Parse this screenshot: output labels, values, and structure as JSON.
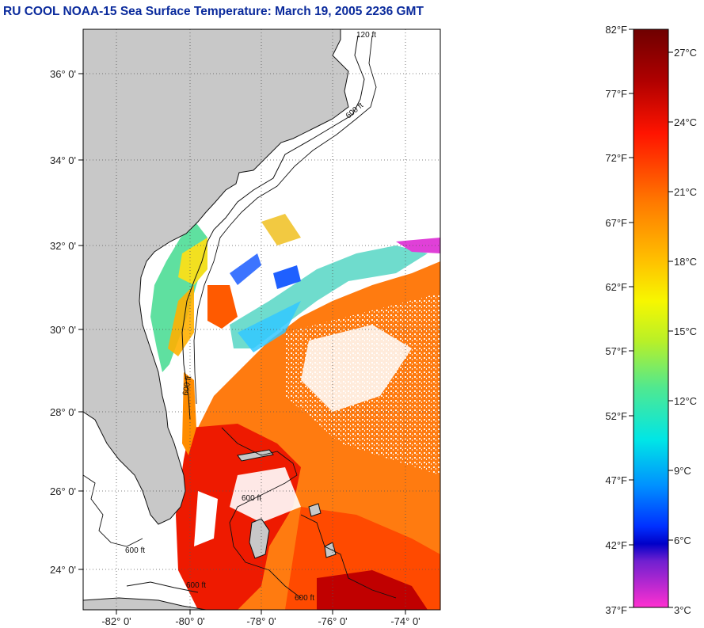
{
  "title": "RU COOL  NOAA-15  Sea Surface Temperature:  March 19, 2005 2236 GMT",
  "map": {
    "latitude_labels": [
      "36° 0'",
      "34° 0'",
      "32° 0'",
      "30° 0'",
      "28° 0'",
      "26° 0'",
      "24° 0'"
    ],
    "longitude_labels": [
      "-82° 0'",
      "-80° 0'",
      "-78° 0'",
      "-76° 0'",
      "-74° 0'"
    ],
    "contour_labels": [
      "120 ft",
      "600 ft",
      "600 ft",
      "600 ft",
      "600 ft",
      "600 ft",
      "600 ft"
    ]
  },
  "colorbar": {
    "fahrenheit": [
      "82°F",
      "77°F",
      "72°F",
      "67°F",
      "62°F",
      "57°F",
      "52°F",
      "47°F",
      "42°F",
      "37°F"
    ],
    "celsius": [
      "27°C",
      "24°C",
      "21°C",
      "18°C",
      "15°C",
      "12°C",
      "9°C",
      "6°C",
      "3°C"
    ],
    "colors": [
      "#7a0000",
      "#cc0000",
      "#ff1a00",
      "#ff7700",
      "#ffbb00",
      "#ffff00",
      "#aaf02a",
      "#44e8a0",
      "#00e0e0",
      "#0099ff",
      "#0033ff",
      "#0000cc",
      "#7a22dd",
      "#ff33cc"
    ]
  }
}
